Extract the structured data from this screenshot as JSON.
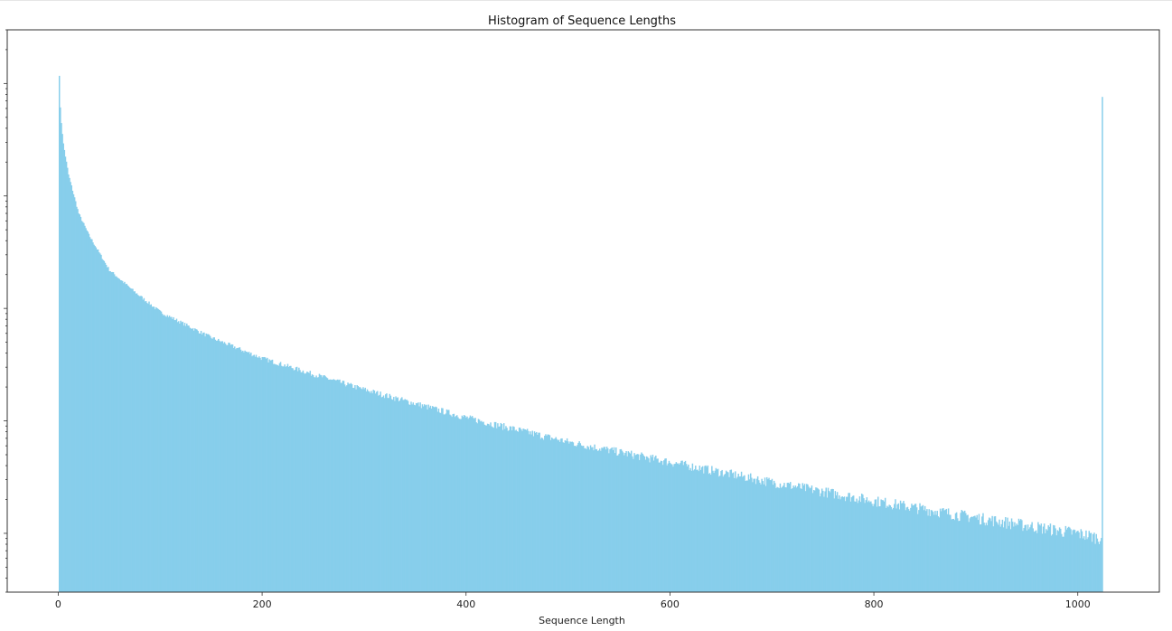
{
  "chart_data": {
    "type": "bar",
    "title": "Histogram of Sequence Lengths",
    "xlabel": "Sequence Length",
    "ylabel": "",
    "xlim": [
      -50,
      1080
    ],
    "y_scale": "log",
    "ylim": [
      0.3,
      30000
    ],
    "x_ticks": [
      0,
      200,
      400,
      600,
      800,
      1000
    ],
    "x_tick_labels": [
      "0",
      "200",
      "400",
      "600",
      "800",
      "1000"
    ],
    "y_tick_labels": [],
    "color": "#87ceeb",
    "bin_width": 1,
    "grid": false,
    "legend": "none",
    "series": [
      {
        "x": [
          1,
          2,
          3,
          5,
          10,
          20,
          30,
          50,
          75,
          100,
          150,
          200,
          250,
          300,
          400,
          500,
          600,
          700,
          800,
          900,
          1000,
          1020,
          1023,
          1024
        ],
        "values": [
          12000,
          6000,
          4500,
          2900,
          1550,
          700,
          450,
          220,
          140,
          93,
          55,
          36,
          26,
          19,
          10.7,
          6.5,
          4.3,
          2.85,
          1.95,
          1.38,
          1.0,
          0.92,
          0.92,
          7600
        ]
      }
    ]
  }
}
